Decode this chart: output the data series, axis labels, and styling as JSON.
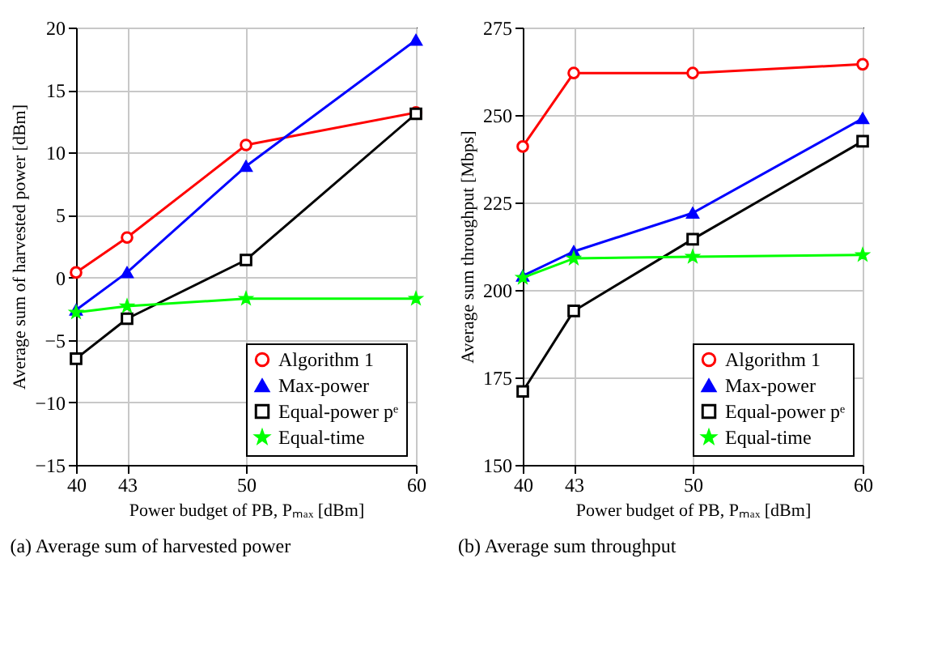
{
  "chart_data": [
    {
      "type": "line",
      "xlabel": "Power budget of PB, Pₘₐₓ [dBm]",
      "ylabel": "Average sum of harvested power [dBm]",
      "x": [
        40,
        43,
        50,
        60
      ],
      "xlim": [
        40,
        60
      ],
      "xticks": [
        40,
        43,
        50,
        60
      ],
      "ylim": [
        -15,
        20
      ],
      "yticks": [
        -15,
        -10,
        -5,
        0,
        5,
        10,
        15,
        20
      ],
      "grid": true,
      "legend": "bottom right",
      "line_style": "solid",
      "annotations": [
        "(a) Average sum of harvested power"
      ],
      "series": [
        {
          "name": "Algorithm 1",
          "color": "#ff0000",
          "marker": "circle",
          "values": [
            0.4,
            3.2,
            10.6,
            13.2
          ]
        },
        {
          "name": "Max-power",
          "color": "#0000ff",
          "marker": "triangle",
          "values": [
            -2.6,
            0.4,
            8.9,
            19.0
          ]
        },
        {
          "name": "Equal-power pᵉ",
          "color": "#000000",
          "marker": "square",
          "values": [
            -6.5,
            -3.3,
            1.4,
            13.1
          ]
        },
        {
          "name": "Equal-time",
          "color": "#00ff00",
          "marker": "star",
          "values": [
            -2.8,
            -2.3,
            -1.7,
            -1.7
          ]
        }
      ]
    },
    {
      "type": "line",
      "xlabel": "Power budget of PB, Pₘₐₓ [dBm]",
      "ylabel": "Average sum throughput [Mbps]",
      "x": [
        40,
        43,
        50,
        60
      ],
      "xlim": [
        40,
        60
      ],
      "xticks": [
        40,
        43,
        50,
        60
      ],
      "ylim": [
        150,
        275
      ],
      "yticks": [
        150,
        175,
        200,
        225,
        250,
        275
      ],
      "grid": true,
      "legend": "bottom right",
      "line_style": "solid",
      "annotations": [
        "(b) Average sum throughput"
      ],
      "series": [
        {
          "name": "Algorithm 1",
          "color": "#ff0000",
          "marker": "circle",
          "values": [
            241,
            262,
            262,
            264.5
          ]
        },
        {
          "name": "Max-power",
          "color": "#0000ff",
          "marker": "triangle",
          "values": [
            204,
            211,
            222,
            249
          ]
        },
        {
          "name": "Equal-power pᵉ",
          "color": "#000000",
          "marker": "square",
          "values": [
            171,
            194,
            214.5,
            242.5
          ]
        },
        {
          "name": "Equal-time",
          "color": "#00ff00",
          "marker": "star",
          "values": [
            203.5,
            209,
            209.5,
            210
          ]
        }
      ]
    }
  ]
}
